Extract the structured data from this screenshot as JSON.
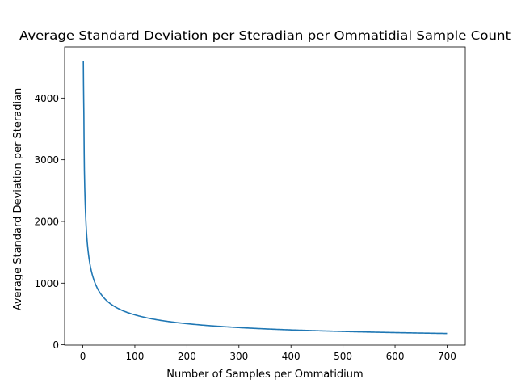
{
  "chart_data": {
    "type": "line",
    "title": "Average Standard Deviation per Steradian per Ommatidial Sample Count",
    "xlabel": "Number of Samples per Ommatidium",
    "ylabel": "Average Standard Deviation per Steradian",
    "xlim": [
      -35,
      735
    ],
    "ylim": [
      -5,
      4830
    ],
    "x_ticks": [
      0,
      100,
      200,
      300,
      400,
      500,
      600,
      700
    ],
    "y_ticks": [
      0,
      1000,
      2000,
      3000,
      4000
    ],
    "grid": false,
    "series": [
      {
        "color": "#1f77b4",
        "x": [
          1,
          2,
          3,
          5,
          7,
          10,
          15,
          20,
          30,
          50,
          75,
          100,
          150,
          200,
          300,
          400,
          500,
          600,
          700
        ],
        "y": [
          4600,
          3760,
          2830,
          2180,
          1830,
          1530,
          1250,
          1085,
          885,
          686,
          560,
          486,
          396,
          343,
          280,
          242,
          217,
          198,
          184
        ]
      }
    ]
  }
}
